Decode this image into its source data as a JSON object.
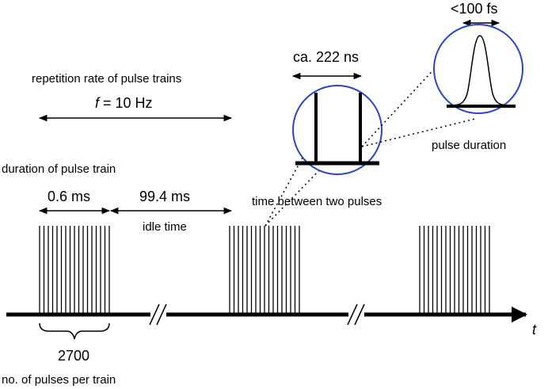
{
  "labels": {
    "rep_rate_title": "repetition rate of pulse trains",
    "rep_rate_symbol": "f",
    "rep_rate_value": " = 10 Hz",
    "train_duration_title": "duration of pulse train",
    "train_duration_value": "0.6 ms",
    "idle_value": "99.4 ms",
    "idle_label": "idle time",
    "pulse_spacing_value": "ca. 222 ns",
    "time_between_label": "time between two pulses",
    "pulse_width_value": "<100 fs",
    "pulse_duration_label": "pulse duration",
    "pulses_count": "2700",
    "pulses_count_label": "no. of pulses per train",
    "time_axis": "t"
  },
  "colors": {
    "line": "#000000",
    "zoom_circle": "#2a45c6"
  }
}
